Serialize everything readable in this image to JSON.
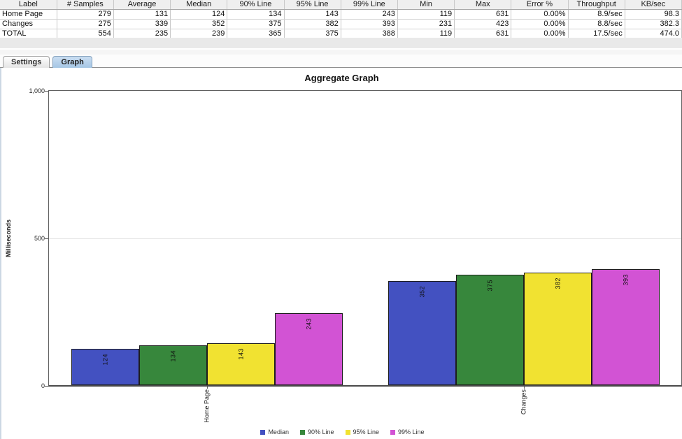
{
  "table": {
    "columns": [
      "Label",
      "# Samples",
      "Average",
      "Median",
      "90% Line",
      "95% Line",
      "99% Line",
      "Min",
      "Max",
      "Error %",
      "Throughput",
      "KB/sec"
    ],
    "rows": [
      [
        "Home Page",
        "279",
        "131",
        "124",
        "134",
        "143",
        "243",
        "119",
        "631",
        "0.00%",
        "8.9/sec",
        "98.3"
      ],
      [
        "Changes",
        "275",
        "339",
        "352",
        "375",
        "382",
        "393",
        "231",
        "423",
        "0.00%",
        "8.8/sec",
        "382.3"
      ],
      [
        "TOTAL",
        "554",
        "235",
        "239",
        "365",
        "375",
        "388",
        "119",
        "631",
        "0.00%",
        "17.5/sec",
        "474.0"
      ]
    ]
  },
  "tabs": [
    {
      "label": "Settings",
      "active": false
    },
    {
      "label": "Graph",
      "active": true
    }
  ],
  "chart_data": {
    "type": "bar",
    "title": "Aggregate Graph",
    "ylabel": "Milliseconds",
    "ylim": [
      0,
      1000
    ],
    "yticks": [
      {
        "value": 0,
        "label": "0"
      },
      {
        "value": 500,
        "label": "500"
      },
      {
        "value": 1000,
        "label": "1,000"
      }
    ],
    "grid": "horizontal gridline at 500 only",
    "legend_position": "bottom",
    "categories": [
      "Home Page",
      "Changes"
    ],
    "series": [
      {
        "name": "Median",
        "color": "#4351c1",
        "values": [
          124,
          352
        ]
      },
      {
        "name": "90% Line",
        "color": "#37873c",
        "values": [
          134,
          375
        ]
      },
      {
        "name": "95% Line",
        "color": "#f1e231",
        "values": [
          143,
          382
        ]
      },
      {
        "name": "99% Line",
        "color": "#d253d4",
        "values": [
          243,
          393
        ]
      }
    ]
  }
}
